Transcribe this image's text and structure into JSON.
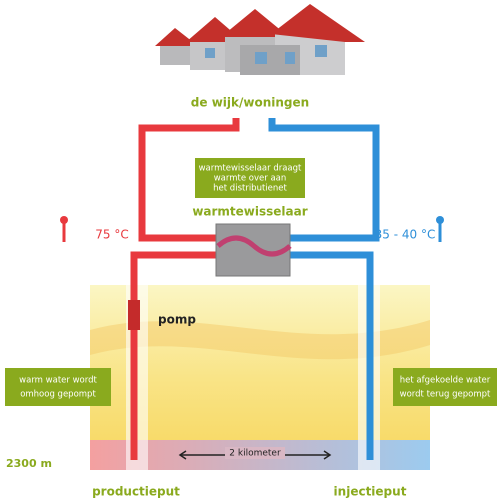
{
  "header": {
    "title": "de wijk/woningen"
  },
  "exchanger": {
    "note": [
      "warmtewisselaar draagt",
      "warmte over aan",
      "het distributienet"
    ],
    "label": "warmtewisselaar"
  },
  "temperatures": {
    "hot": "75 °C",
    "cold": "35 - 40 °C"
  },
  "pump": "pomp",
  "left_note": [
    "warm water wordt",
    "omhoog gepompt"
  ],
  "right_note": [
    "het afgekoelde water",
    "wordt terug gepompt"
  ],
  "depth": "2300 m",
  "distance": "2 kilometer",
  "wells": {
    "production": "productieput",
    "injection": "injectieput"
  }
}
